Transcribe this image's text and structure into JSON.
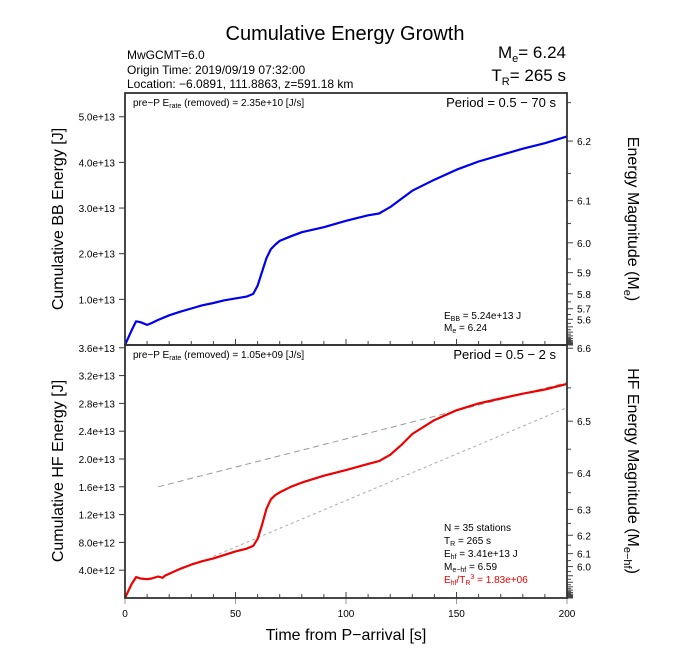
{
  "chart_data": [
    {
      "type": "line",
      "panel": "top",
      "title": "Cumulative Energy Growth",
      "header_left": [
        "MwGCMT=6.0",
        "Origin Time: 2019/09/19 07:32:00",
        "Location: −6.0891, 111.8863, z=591.18 km"
      ],
      "header_right": {
        "me_label": "M",
        "me_sub": "e",
        "me_value": "= 6.24",
        "tr_label": "T",
        "tr_sub": "R",
        "tr_value": "= 265 s"
      },
      "note_left": {
        "pre": "pre−P E",
        "sub": "rate",
        "post": " (removed) = 2.35e+10 [J/s]"
      },
      "note_right": "Period = 0.5 − 70 s",
      "ylabel": "Cumulative BB Energy [J]",
      "ylabel_right": {
        "main": "Energy Magnitude (M",
        "sub": "e",
        "end": ")"
      },
      "xlim": [
        0,
        200
      ],
      "ylim": [
        0,
        55200000000000.0
      ],
      "yticks": [
        10000000000000.0,
        20000000000000.0,
        30000000000000.0,
        40000000000000.0,
        50000000000000.0
      ],
      "ytick_labels": [
        "1.0e+13",
        "2.0e+13",
        "3.0e+13",
        "4.0e+13",
        "5.0e+13"
      ],
      "right_ticks_labeled": [
        5.6,
        5.7,
        5.8,
        5.9,
        6.0,
        6.1,
        6.2
      ],
      "right_tick_labels": [
        "5.6",
        "5.7",
        "5.8",
        "5.9",
        "6.0",
        "6.1",
        "6.2"
      ],
      "annotation": {
        "ebb_pre": "E",
        "ebb_sub": "BB",
        "ebb_post": " = 5.24e+13 J",
        "me_pre": "M",
        "me_sub": "e",
        "me_post": " = 6.24"
      },
      "series": [
        {
          "name": "BB energy",
          "color": "#0000ee",
          "x": [
            0,
            3,
            5,
            7,
            10,
            12,
            15,
            20,
            25,
            30,
            35,
            40,
            45,
            50,
            55,
            58,
            60,
            62,
            64,
            66,
            68,
            70,
            75,
            80,
            90,
            100,
            110,
            115,
            120,
            125,
            130,
            140,
            150,
            160,
            170,
            180,
            190,
            200
          ],
          "y": [
            0,
            3200000000000.0,
            5200000000000.0,
            5000000000000.0,
            4400000000000.0,
            4800000000000.0,
            5500000000000.0,
            6500000000000.0,
            7300000000000.0,
            8000000000000.0,
            8700000000000.0,
            9200000000000.0,
            9800000000000.0,
            10200000000000.0,
            10600000000000.0,
            11200000000000.0,
            13000000000000.0,
            16000000000000.0,
            19000000000000.0,
            21000000000000.0,
            22000000000000.0,
            22800000000000.0,
            23800000000000.0,
            24700000000000.0,
            25800000000000.0,
            27200000000000.0,
            28400000000000.0,
            28800000000000.0,
            30200000000000.0,
            32000000000000.0,
            33800000000000.0,
            36200000000000.0,
            38400000000000.0,
            40200000000000.0,
            41600000000000.0,
            43000000000000.0,
            44200000000000.0,
            45700000000000.0
          ]
        }
      ]
    },
    {
      "type": "line",
      "panel": "bottom",
      "note_left": {
        "pre": "pre−P E",
        "sub": "rate",
        "post": " (removed) = 1.05e+09 [J/s]"
      },
      "note_right": "Period = 0.5 − 2 s",
      "ylabel": "Cumulative HF Energy [J]",
      "ylabel_right": {
        "main": "HF Energy Magnitude (M",
        "sub": "e−hf",
        "end": ")"
      },
      "xlabel": "Time from P−arrival [s]",
      "xlim": [
        0,
        200
      ],
      "xticks": [
        0,
        50,
        100,
        150,
        200
      ],
      "xtick_labels": [
        "0",
        "50",
        "100",
        "150",
        "200"
      ],
      "ylim": [
        0,
        36400000000000.0
      ],
      "yticks": [
        4000000000000.0,
        8000000000000.0,
        12000000000000.0,
        16000000000000.0,
        20000000000000.0,
        24000000000000.0,
        28000000000000.0,
        32000000000000.0,
        36000000000000.0
      ],
      "ytick_labels": [
        "4.0e+12",
        "8.0e+12",
        "1.2e+13",
        "1.6e+13",
        "2.0e+13",
        "2.4e+13",
        "2.8e+13",
        "3.2e+13",
        "3.6e+13"
      ],
      "right_ticks_labeled": [
        6.0,
        6.1,
        6.2,
        6.3,
        6.4,
        6.5,
        6.6
      ],
      "right_tick_labels": [
        "6.0",
        "6.1",
        "6.2",
        "6.3",
        "6.4",
        "6.5",
        "6.6"
      ],
      "annotation": {
        "n": "N = 35 stations",
        "tr_pre": "T",
        "tr_sub": "R",
        "tr_post": " = 265  s",
        "ehf_pre": "E",
        "ehf_sub": "hf",
        "ehf_post": " = 3.41e+13 J",
        "mehf_pre": "M",
        "mehf_sub": "e−hf",
        "mehf_post": " = 6.59",
        "ratio_pre": "E",
        "ratio_sub": "hf",
        "ratio_mid": "/T",
        "ratio_sub2": "R",
        "ratio_sup": "3",
        "ratio_post": " =  1.83e+06",
        "ratio_color": "#ee0000"
      },
      "series": [
        {
          "name": "HF energy",
          "color": "#ee0000",
          "x": [
            0,
            3,
            5,
            7,
            10,
            12,
            15,
            17,
            18,
            20,
            25,
            30,
            35,
            40,
            45,
            50,
            55,
            58,
            60,
            62,
            64,
            66,
            68,
            70,
            75,
            80,
            90,
            100,
            110,
            115,
            120,
            125,
            130,
            140,
            150,
            160,
            170,
            180,
            190,
            200
          ],
          "y": [
            0,
            2000000000000.0,
            3000000000000.0,
            2800000000000.0,
            2700000000000.0,
            2800000000000.0,
            3100000000000.0,
            2900000000000.0,
            3200000000000.0,
            3500000000000.0,
            4200000000000.0,
            4800000000000.0,
            5300000000000.0,
            5700000000000.0,
            6200000000000.0,
            6700000000000.0,
            7100000000000.0,
            7500000000000.0,
            8500000000000.0,
            10500000000000.0,
            12800000000000.0,
            14200000000000.0,
            14800000000000.0,
            15200000000000.0,
            16000000000000.0,
            16600000000000.0,
            17600000000000.0,
            18400000000000.0,
            19300000000000.0,
            19700000000000.0,
            20600000000000.0,
            22000000000000.0,
            23600000000000.0,
            25600000000000.0,
            27000000000000.0,
            28000000000000.0,
            28700000000000.0,
            29400000000000.0,
            30000000000000.0,
            30800000000000.0
          ]
        },
        {
          "name": "upper dashed fit",
          "color": "#999999",
          "dash": true,
          "x": [
            15,
            200
          ],
          "y": [
            16000000000000.0,
            31000000000000.0
          ]
        },
        {
          "name": "lower dashed fit",
          "color": "#aaaaaa",
          "dash": true,
          "x": [
            40,
            200
          ],
          "y": [
            6000000000000.0,
            27400000000000.0
          ]
        }
      ]
    }
  ]
}
